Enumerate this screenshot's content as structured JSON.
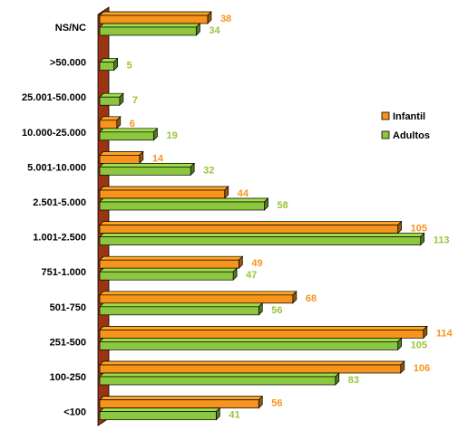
{
  "colors": {
    "infantil": "#f7941d",
    "adultos": "#8dc63f",
    "infantil_label": "#f7941d",
    "adultos_label": "#9ac43a",
    "axis_wall": "#9a3412",
    "outline": "#000000"
  },
  "chart_data": {
    "type": "bar",
    "orientation": "horizontal",
    "title": "",
    "xlabel": "",
    "ylabel": "",
    "xlim": [
      0,
      130
    ],
    "grid": false,
    "legend_position": "right",
    "categories": [
      "NS/NC",
      ">50.000",
      "25.001-50.000",
      "10.000-25.000",
      "5.001-10.000",
      "2.501-5.000",
      "1.001-2.500",
      "751-1.000",
      "501-750",
      "251-500",
      "100-250",
      "<100"
    ],
    "series": [
      {
        "name": "Infantil",
        "values": [
          38,
          null,
          null,
          6,
          14,
          44,
          105,
          49,
          68,
          114,
          106,
          56
        ]
      },
      {
        "name": "Adultos",
        "values": [
          34,
          5,
          7,
          19,
          32,
          58,
          113,
          47,
          56,
          105,
          83,
          41
        ]
      }
    ]
  }
}
